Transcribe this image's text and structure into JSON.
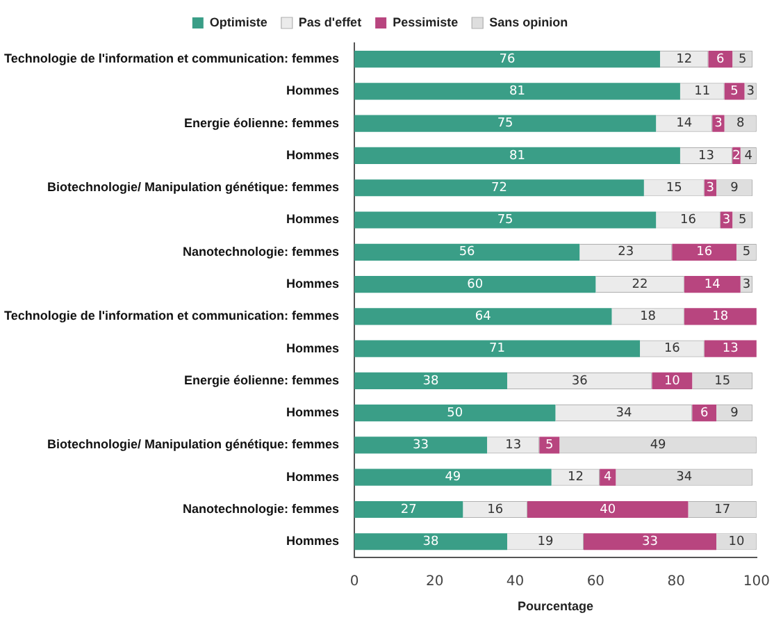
{
  "chart_data": {
    "type": "bar",
    "orientation": "horizontal",
    "stacked": true,
    "data_labels": true,
    "legend": "top",
    "grid": false,
    "xlabel": "Pourcentage",
    "xlim": [
      0,
      100
    ],
    "xticks": [
      0,
      20,
      40,
      60,
      80,
      100
    ],
    "categories": [
      "Technologie de l'information et communication: femmes",
      "Hommes",
      "Energie éolienne: femmes",
      "Hommes",
      "Biotechnologie/ Manipulation génétique: femmes",
      "Hommes",
      "Nanotechnologie: femmes",
      "Hommes",
      "Technologie de l'information et communication: femmes",
      "Hommes",
      "Energie éolienne: femmes",
      "Hommes",
      "Biotechnologie/ Manipulation génétique: femmes",
      "Hommes",
      "Nanotechnologie: femmes",
      "Hommes"
    ],
    "series": [
      {
        "name": "Optimiste",
        "color": "#3a9e87",
        "values": [
          76,
          81,
          75,
          81,
          72,
          75,
          56,
          60,
          64,
          71,
          38,
          50,
          33,
          49,
          27,
          38
        ]
      },
      {
        "name": "Pas d'effet",
        "color": "#ebebeb",
        "values": [
          12,
          11,
          14,
          13,
          15,
          16,
          23,
          22,
          18,
          16,
          36,
          34,
          13,
          12,
          16,
          19
        ]
      },
      {
        "name": "Pessimiste",
        "color": "#b8457f",
        "values": [
          6,
          5,
          3,
          2,
          3,
          3,
          16,
          14,
          18,
          13,
          10,
          6,
          5,
          4,
          40,
          33
        ]
      },
      {
        "name": "Sans opinion",
        "color": "#dedede",
        "values": [
          5,
          3,
          8,
          4,
          9,
          5,
          5,
          3,
          null,
          null,
          15,
          9,
          49,
          34,
          17,
          10
        ]
      }
    ]
  }
}
